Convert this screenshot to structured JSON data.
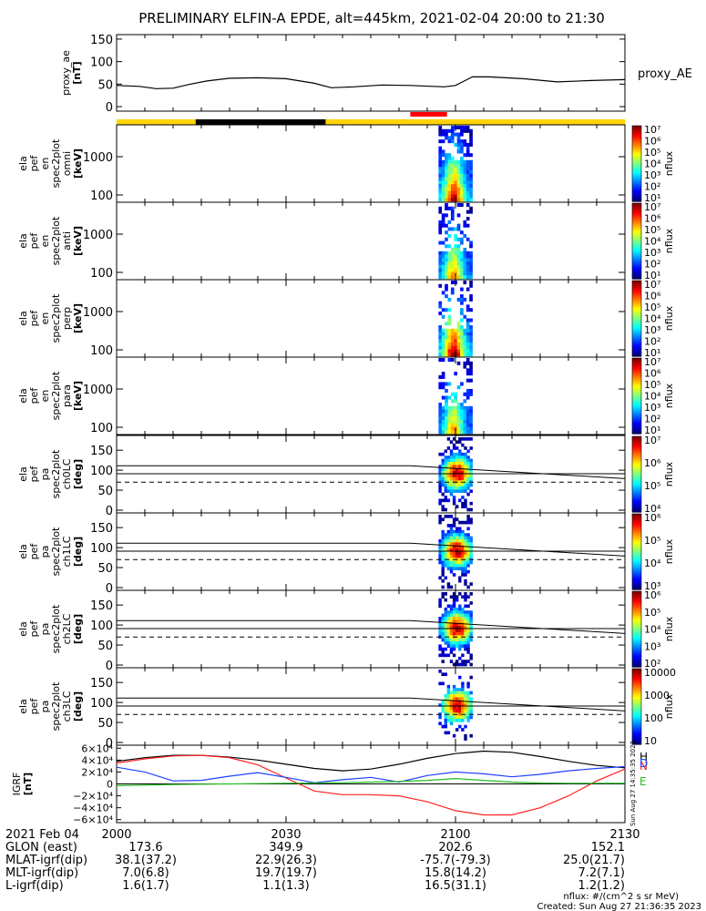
{
  "title": "PRELIMINARY ELFIN-A EPDE, alt=445km, 2021-02-04 20:00 to 21:30",
  "colors": {
    "sunlit_bar": "#ffd400",
    "shadow_bar": "#000000",
    "science_zone_bar": "#ff0000",
    "igrf_N": "#ff2020",
    "igrf_E": "#20c020",
    "igrf_H": "#000000",
    "igrf_D": "#2040ff"
  },
  "chart_data": [
    {
      "type": "line",
      "panel": "proxy_ae",
      "ylabel": [
        "proxy_ae",
        "[nT]"
      ],
      "legend": "proxy_AE",
      "ylim": [
        -10,
        160
      ],
      "yticks": [
        "150",
        "100",
        "50",
        "0"
      ],
      "x_minutes": [
        0,
        4,
        7,
        10,
        13,
        16,
        20,
        25,
        30,
        35,
        38,
        42,
        47,
        52,
        58,
        60,
        63,
        66,
        72,
        78,
        84,
        90
      ],
      "values": [
        47,
        45,
        40,
        41,
        50,
        57,
        63,
        64,
        62,
        52,
        42,
        44,
        48,
        47,
        44,
        47,
        66,
        66,
        62,
        55,
        58,
        60
      ]
    },
    {
      "type": "heatmap",
      "panel": "omni",
      "ylabel": [
        "ela",
        "pef",
        "en",
        "spec2plot",
        "omni",
        "[keV]"
      ],
      "yticks": [
        "1000",
        "100"
      ],
      "zlabel": "nflux",
      "zticks": [
        "10⁷",
        "10⁶",
        "10⁵",
        "10⁴",
        "10³",
        "10²",
        "10¹"
      ],
      "active_minutes": [
        57,
        63
      ]
    },
    {
      "type": "heatmap",
      "panel": "anti",
      "ylabel": [
        "ela",
        "pef",
        "en",
        "spec2plot",
        "anti",
        "[keV]"
      ],
      "yticks": [
        "1000",
        "100"
      ],
      "zlabel": "nflux",
      "zticks": [
        "10⁷",
        "10⁶",
        "10⁵",
        "10⁴",
        "10³",
        "10²",
        "10¹"
      ],
      "active_minutes": [
        57,
        63
      ]
    },
    {
      "type": "heatmap",
      "panel": "perp",
      "ylabel": [
        "ela",
        "pef",
        "en",
        "spec2plot",
        "perp",
        "[keV]"
      ],
      "yticks": [
        "1000",
        "100"
      ],
      "zlabel": "nflux",
      "zticks": [
        "10⁷",
        "10⁶",
        "10⁵",
        "10⁴",
        "10³",
        "10²",
        "10¹"
      ],
      "active_minutes": [
        57,
        63
      ]
    },
    {
      "type": "heatmap",
      "panel": "para",
      "ylabel": [
        "ela",
        "pef",
        "en",
        "spec2plot",
        "para",
        "[keV]"
      ],
      "yticks": [
        "1000",
        "100"
      ],
      "zlabel": "nflux",
      "zticks": [
        "10⁷",
        "10⁶",
        "10⁵",
        "10⁴",
        "10³",
        "10²",
        "10¹"
      ],
      "active_minutes": [
        57,
        63
      ]
    },
    {
      "type": "heatmap",
      "panel": "ch0LC",
      "ylabel": [
        "ela",
        "pef",
        "pa",
        "spec2plot",
        "ch0LC",
        "[deg]"
      ],
      "yticks": [
        "150",
        "100",
        "50",
        "0"
      ],
      "zlabel": "nflux",
      "zticks": [
        "10⁷",
        "10⁶",
        "10⁵",
        "10⁴"
      ],
      "loss_cone_deg": [
        111,
        70
      ],
      "anti_loss_cone_deg": [
        91,
        109
      ],
      "active_minutes": [
        57,
        63
      ]
    },
    {
      "type": "heatmap",
      "panel": "ch1LC",
      "ylabel": [
        "ela",
        "pef",
        "pa",
        "spec2plot",
        "ch1LC",
        "[deg]"
      ],
      "yticks": [
        "150",
        "100",
        "50",
        "0"
      ],
      "zlabel": "nflux",
      "zticks": [
        "10⁶",
        "10⁵",
        "10⁴",
        "10³"
      ],
      "loss_cone_deg": [
        111,
        70
      ],
      "anti_loss_cone_deg": [
        91,
        109
      ],
      "active_minutes": [
        57,
        63
      ]
    },
    {
      "type": "heatmap",
      "panel": "ch2LC",
      "ylabel": [
        "ela",
        "pef",
        "pa",
        "spec2plot",
        "ch2LC",
        "[deg]"
      ],
      "yticks": [
        "150",
        "100",
        "50",
        "0"
      ],
      "zlabel": "nflux",
      "zticks": [
        "10⁶",
        "10⁵",
        "10⁴",
        "10³",
        "10²"
      ],
      "loss_cone_deg": [
        111,
        70
      ],
      "anti_loss_cone_deg": [
        91,
        109
      ],
      "active_minutes": [
        57,
        63
      ]
    },
    {
      "type": "heatmap",
      "panel": "ch3LC",
      "ylabel": [
        "ela",
        "pef",
        "pa",
        "spec2plot",
        "ch3LC",
        "[deg]"
      ],
      "yticks": [
        "150",
        "100",
        "50",
        "0"
      ],
      "zlabel": "nflux",
      "zticks": [
        "10000",
        "1000",
        "100",
        "10"
      ],
      "loss_cone_deg": [
        111,
        70
      ],
      "anti_loss_cone_deg": [
        91,
        109
      ],
      "active_minutes": [
        57,
        63
      ]
    },
    {
      "type": "line",
      "panel": "IGRF",
      "ylabel": [
        "IGRF",
        "[nT]"
      ],
      "ylim": [
        -65000,
        65000
      ],
      "yticks": [
        "6×10⁴",
        "4×10⁴",
        "2×10⁴",
        "0",
        "−2×10⁴",
        "−4×10⁴",
        "−6×10⁴"
      ],
      "x_minutes": [
        0,
        5,
        10,
        15,
        20,
        25,
        30,
        35,
        40,
        45,
        50,
        55,
        60,
        65,
        70,
        75,
        80,
        85,
        90
      ],
      "series": [
        {
          "name": "H",
          "values": [
            38000,
            44000,
            48000,
            48000,
            45000,
            40000,
            33000,
            26000,
            22000,
            25000,
            33000,
            43000,
            51000,
            55000,
            53000,
            46000,
            38000,
            31000,
            27000
          ]
        },
        {
          "name": "N",
          "values": [
            35000,
            42000,
            47000,
            48000,
            44000,
            32000,
            10000,
            -12000,
            -18000,
            -18000,
            -20000,
            -30000,
            -45000,
            -52000,
            -52000,
            -40000,
            -20000,
            5000,
            25000
          ]
        },
        {
          "name": "D",
          "values": [
            28000,
            20000,
            5000,
            6000,
            13000,
            19000,
            11000,
            2000,
            7000,
            11000,
            3000,
            14000,
            20000,
            17000,
            12000,
            16000,
            22000,
            26000,
            29000
          ]
        },
        {
          "name": "E",
          "values": [
            -3000,
            -2000,
            -1000,
            -500,
            0,
            500,
            1000,
            1500,
            2000,
            3000,
            4000,
            6000,
            9000,
            6000,
            3000,
            1500,
            1000,
            1000,
            1000
          ]
        }
      ],
      "legend": [
        "H",
        "N",
        "D",
        "E"
      ],
      "ylabel_side": "Sun Aug 27 14:35:35 2023"
    }
  ],
  "footer": {
    "date_label": "2021 Feb 04",
    "time_ticks": [
      "2000",
      "2030",
      "2100",
      "2130"
    ],
    "rows": [
      {
        "label": "GLON (east)",
        "values": [
          "173.6",
          "349.9",
          "202.6",
          "152.1"
        ]
      },
      {
        "label": "MLAT-igrf(dip)",
        "values": [
          "38.1(37.2)",
          "22.9(26.3)",
          "-75.7(-79.3)",
          "25.0(21.7)"
        ]
      },
      {
        "label": "MLT-igrf(dip)",
        "values": [
          "7.0(6.8)",
          "19.7(19.7)",
          "15.8(14.2)",
          "7.2(7.1)"
        ]
      },
      {
        "label": "L-igrf(dip)",
        "values": [
          "1.6(1.7)",
          "1.1(1.3)",
          "16.5(31.1)",
          "1.2(1.2)"
        ]
      }
    ],
    "units_note": "nflux: #/(cm^2 s sr MeV)",
    "created": "Created: Sun Aug 27 21:36:35 2023"
  }
}
